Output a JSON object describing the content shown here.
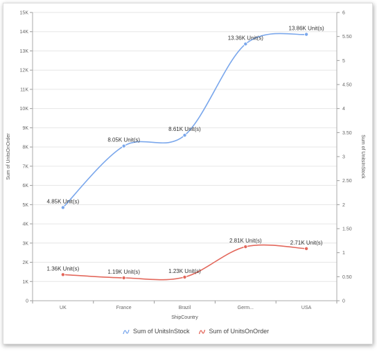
{
  "chart_data": {
    "type": "line",
    "categories": [
      "UK",
      "France",
      "Brazil",
      "Germ...",
      "USA"
    ],
    "xlabel": "ShipCountry",
    "y_left": {
      "label": "Sum of UnitsOnOrder",
      "lim": [
        0,
        15000
      ],
      "ticks": [
        "0",
        "1K",
        "2K",
        "3K",
        "4K",
        "5K",
        "6K",
        "7K",
        "8K",
        "9K",
        "10K",
        "11K",
        "12K",
        "13K",
        "14K",
        "15K"
      ]
    },
    "y_right": {
      "label": "Sum of UnitsInStock",
      "lim": [
        0,
        6
      ],
      "ticks": [
        "0",
        "0.50",
        "1",
        "1.50",
        "2",
        "2.50",
        "3",
        "3.50",
        "4",
        "4.50",
        "5",
        "5.50",
        "6"
      ]
    },
    "series": [
      {
        "name": "Sum of UnitsInStock",
        "color": "#7aa7ec",
        "values": [
          4850,
          8050,
          8610,
          13360,
          13860
        ],
        "labels": [
          "4.85K Unit(s)",
          "8.05K Unit(s)",
          "8.61K Unit(s)",
          "13.36K Unit(s)",
          "13.86K Unit(s)"
        ]
      },
      {
        "name": "Sum of UnitsOnOrder",
        "color": "#e3675b",
        "values": [
          1360,
          1190,
          1230,
          2810,
          2710
        ],
        "labels": [
          "1.36K Unit(s)",
          "1.19K Unit(s)",
          "1.23K Unit(s)",
          "2.81K Unit(s)",
          "2.71K Unit(s)"
        ]
      }
    ],
    "grid": true,
    "legend_position": "bottom"
  }
}
